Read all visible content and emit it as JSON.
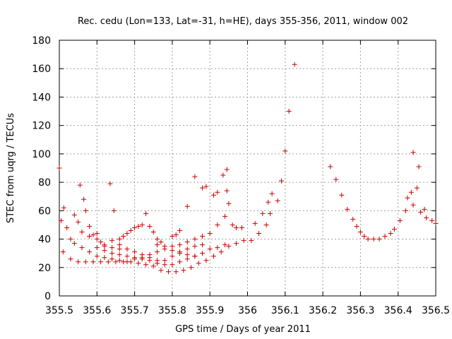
{
  "chart_data": {
    "type": "scatter",
    "title": "Rec. cedu (Lon=133, Lat=-31, h=HE), days 355-356, 2011, window 002",
    "xlabel": "GPS time / Days of year 2011",
    "ylabel": "STEC from uqrg / TECUs",
    "xlim": [
      355.5,
      356.5
    ],
    "ylim": [
      0,
      180
    ],
    "x_ticks": [
      355.5,
      355.6,
      355.7,
      355.8,
      355.9,
      356,
      356.1,
      356.2,
      356.3,
      356.4,
      356.5
    ],
    "x_tick_labels": [
      "355.5",
      "355.6",
      "355.7",
      "355.8",
      "355.9",
      "356",
      "356.1",
      "356.2",
      "356.3",
      "356.4",
      "356.5"
    ],
    "y_ticks": [
      0,
      20,
      40,
      60,
      80,
      100,
      120,
      140,
      160,
      180
    ],
    "y_tick_labels": [
      "0",
      "20",
      "40",
      "60",
      "80",
      "100",
      "120",
      "140",
      "160",
      "180"
    ],
    "grid": true,
    "marker": "plus",
    "color": "#cc0000",
    "points": [
      [
        355.5,
        90
      ],
      [
        355.505,
        53
      ],
      [
        355.512,
        62
      ],
      [
        355.52,
        48
      ],
      [
        355.53,
        40
      ],
      [
        355.54,
        57
      ],
      [
        355.55,
        52
      ],
      [
        355.555,
        78
      ],
      [
        355.565,
        68
      ],
      [
        355.57,
        60
      ],
      [
        355.58,
        49
      ],
      [
        355.59,
        43
      ],
      [
        355.6,
        40
      ],
      [
        355.61,
        38
      ],
      [
        355.62,
        36
      ],
      [
        355.635,
        79
      ],
      [
        355.645,
        60
      ],
      [
        355.64,
        39
      ],
      [
        355.66,
        40
      ],
      [
        355.67,
        42
      ],
      [
        355.68,
        44
      ],
      [
        355.69,
        46
      ],
      [
        355.7,
        48
      ],
      [
        355.71,
        49
      ],
      [
        355.72,
        50
      ],
      [
        355.73,
        58
      ],
      [
        355.74,
        49
      ],
      [
        355.75,
        45
      ],
      [
        355.76,
        40
      ],
      [
        355.77,
        38
      ],
      [
        355.8,
        42
      ],
      [
        355.81,
        43
      ],
      [
        355.82,
        46
      ],
      [
        355.84,
        63
      ],
      [
        355.86,
        84
      ],
      [
        355.88,
        76
      ],
      [
        355.89,
        77
      ],
      [
        355.91,
        71
      ],
      [
        355.92,
        73
      ],
      [
        355.935,
        85
      ],
      [
        355.945,
        89
      ],
      [
        355.945,
        74
      ],
      [
        355.95,
        65
      ],
      [
        355.97,
        48
      ],
      [
        355.985,
        48
      ],
      [
        355.51,
        31
      ],
      [
        355.53,
        26
      ],
      [
        355.55,
        24
      ],
      [
        355.57,
        24
      ],
      [
        355.59,
        24
      ],
      [
        355.61,
        24
      ],
      [
        355.63,
        24
      ],
      [
        355.65,
        24
      ],
      [
        355.67,
        24
      ],
      [
        355.69,
        24
      ],
      [
        355.71,
        23
      ],
      [
        355.73,
        22
      ],
      [
        355.75,
        21
      ],
      [
        355.77,
        18
      ],
      [
        355.79,
        17
      ],
      [
        355.81,
        17
      ],
      [
        355.83,
        18
      ],
      [
        355.85,
        20
      ],
      [
        355.87,
        23
      ],
      [
        355.89,
        25
      ],
      [
        355.91,
        28
      ],
      [
        355.93,
        31
      ],
      [
        355.95,
        35
      ],
      [
        355.97,
        37
      ],
      [
        355.99,
        39
      ],
      [
        355.54,
        37
      ],
      [
        355.56,
        34
      ],
      [
        355.58,
        31
      ],
      [
        355.6,
        28
      ],
      [
        355.62,
        27
      ],
      [
        355.64,
        26
      ],
      [
        355.66,
        25
      ],
      [
        355.68,
        24
      ],
      [
        355.7,
        26
      ],
      [
        355.72,
        27
      ],
      [
        355.74,
        29
      ],
      [
        355.76,
        31
      ],
      [
        355.78,
        33
      ],
      [
        355.8,
        35
      ],
      [
        355.82,
        36
      ],
      [
        355.84,
        38
      ],
      [
        355.86,
        40
      ],
      [
        355.88,
        42
      ],
      [
        355.9,
        44
      ],
      [
        355.92,
        50
      ],
      [
        355.94,
        56
      ],
      [
        355.96,
        50
      ],
      [
        355.6,
        34
      ],
      [
        355.62,
        32
      ],
      [
        355.64,
        30
      ],
      [
        355.66,
        29
      ],
      [
        355.68,
        28
      ],
      [
        355.7,
        27
      ],
      [
        355.72,
        26
      ],
      [
        355.74,
        25
      ],
      [
        355.76,
        23
      ],
      [
        355.78,
        22
      ],
      [
        355.8,
        22
      ],
      [
        355.82,
        24
      ],
      [
        355.84,
        26
      ],
      [
        355.86,
        28
      ],
      [
        355.88,
        30
      ],
      [
        355.9,
        33
      ],
      [
        355.92,
        34
      ],
      [
        355.94,
        36
      ],
      [
        355.66,
        36
      ],
      [
        355.68,
        33
      ],
      [
        355.7,
        31
      ],
      [
        355.72,
        29
      ],
      [
        355.74,
        27
      ],
      [
        355.76,
        25
      ],
      [
        355.78,
        25
      ],
      [
        355.8,
        28
      ],
      [
        355.82,
        31
      ],
      [
        355.84,
        33
      ],
      [
        355.86,
        35
      ],
      [
        355.88,
        36
      ],
      [
        355.56,
        45
      ],
      [
        355.58,
        42
      ],
      [
        355.6,
        44
      ],
      [
        355.62,
        35
      ],
      [
        355.64,
        34
      ],
      [
        355.66,
        33
      ],
      [
        355.76,
        36
      ],
      [
        355.78,
        35
      ],
      [
        355.8,
        32
      ],
      [
        355.82,
        30
      ],
      [
        355.84,
        29
      ],
      [
        355.86,
        28
      ],
      [
        356.01,
        39
      ],
      [
        356.02,
        51
      ],
      [
        356.03,
        44
      ],
      [
        356.04,
        58
      ],
      [
        356.05,
        50
      ],
      [
        356.055,
        66
      ],
      [
        356.06,
        58
      ],
      [
        356.065,
        72
      ],
      [
        356.08,
        67
      ],
      [
        356.09,
        81
      ],
      [
        356.1,
        102
      ],
      [
        356.11,
        130
      ],
      [
        356.125,
        163
      ],
      [
        356.22,
        91
      ],
      [
        356.235,
        82
      ],
      [
        356.25,
        71
      ],
      [
        356.265,
        61
      ],
      [
        356.28,
        54
      ],
      [
        356.29,
        49
      ],
      [
        356.3,
        45
      ],
      [
        356.31,
        42
      ],
      [
        356.32,
        40
      ],
      [
        356.335,
        40
      ],
      [
        356.35,
        40
      ],
      [
        356.365,
        42
      ],
      [
        356.38,
        44
      ],
      [
        356.39,
        47
      ],
      [
        356.405,
        53
      ],
      [
        356.42,
        60
      ],
      [
        356.425,
        69
      ],
      [
        356.435,
        73
      ],
      [
        356.44,
        64
      ],
      [
        356.44,
        101
      ],
      [
        356.45,
        76
      ],
      [
        356.455,
        91
      ],
      [
        356.46,
        59
      ],
      [
        356.47,
        61
      ],
      [
        356.475,
        55
      ],
      [
        356.49,
        53
      ],
      [
        356.5,
        51
      ]
    ]
  }
}
